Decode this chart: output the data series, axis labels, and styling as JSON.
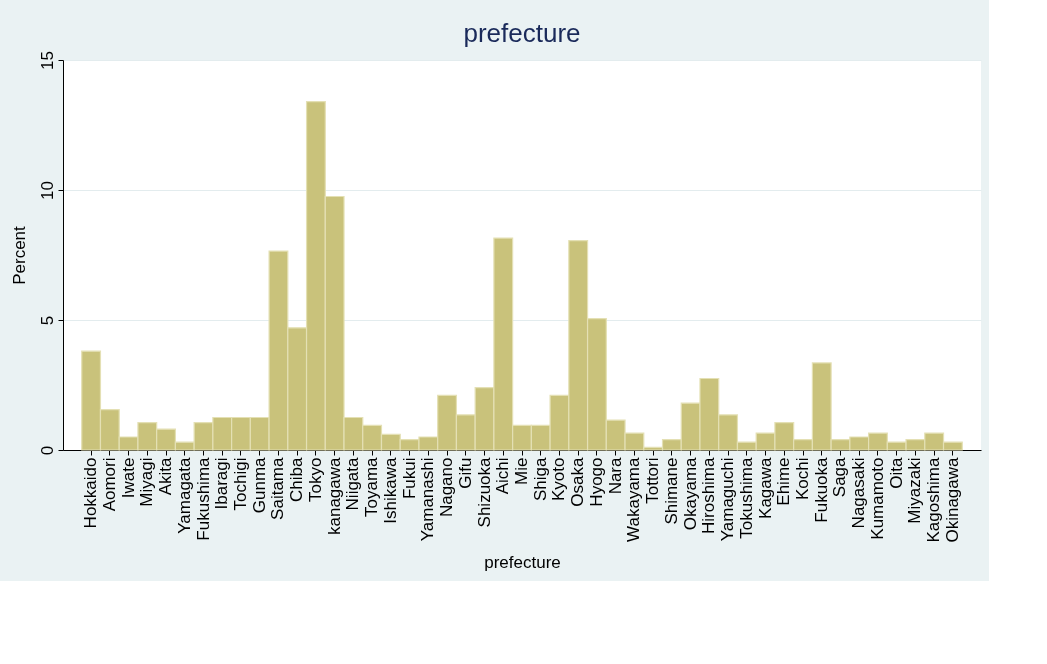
{
  "chart_data": {
    "type": "bar",
    "title": "prefecture",
    "xlabel": "prefecture",
    "ylabel": "Percent",
    "categories": [
      "Hokkaido",
      "Aomori",
      "Iwate",
      "Miyagi",
      "Akita",
      "Yamagata",
      "Fukushima",
      "Ibaragi",
      "Tochigi",
      "Gunma",
      "Saitama",
      "Chiba",
      "Tokyo",
      "kanagawa",
      "Niigata",
      "Toyama",
      "Ishikawa",
      "Fukui",
      "Yamanashi",
      "Nagano",
      "Gifu",
      "Shizuoka",
      "Aichi",
      "Mie",
      "Shiga",
      "Kyoto",
      "Osaka",
      "Hyogo",
      "Nara",
      "Wakayama",
      "Tottori",
      "Shimane",
      "Okayama",
      "Hiroshima",
      "Yamaguchi",
      "Tokushima",
      "Kagawa",
      "Ehime",
      "Kochi",
      "Fukuoka",
      "Saga",
      "Nagasaki",
      "Kumamoto",
      "Oita",
      "Miyazaki",
      "Kagoshima",
      "Okinagawa"
    ],
    "values": [
      3.8,
      1.55,
      0.5,
      1.05,
      0.8,
      0.3,
      1.05,
      1.25,
      1.25,
      1.25,
      7.65,
      4.7,
      13.4,
      9.75,
      1.25,
      0.95,
      0.6,
      0.4,
      0.5,
      2.1,
      1.35,
      2.4,
      8.15,
      0.95,
      0.95,
      2.1,
      8.05,
      5.05,
      1.15,
      0.65,
      0.1,
      0.4,
      1.8,
      2.75,
      1.35,
      0.3,
      0.65,
      1.05,
      0.4,
      3.35,
      0.4,
      0.5,
      0.65,
      0.3,
      0.4,
      0.65,
      0.3
    ],
    "color": "#c9c27b",
    "ylim": [
      0,
      15
    ],
    "yticks": [
      0,
      5,
      10,
      15
    ],
    "grid": "y"
  }
}
